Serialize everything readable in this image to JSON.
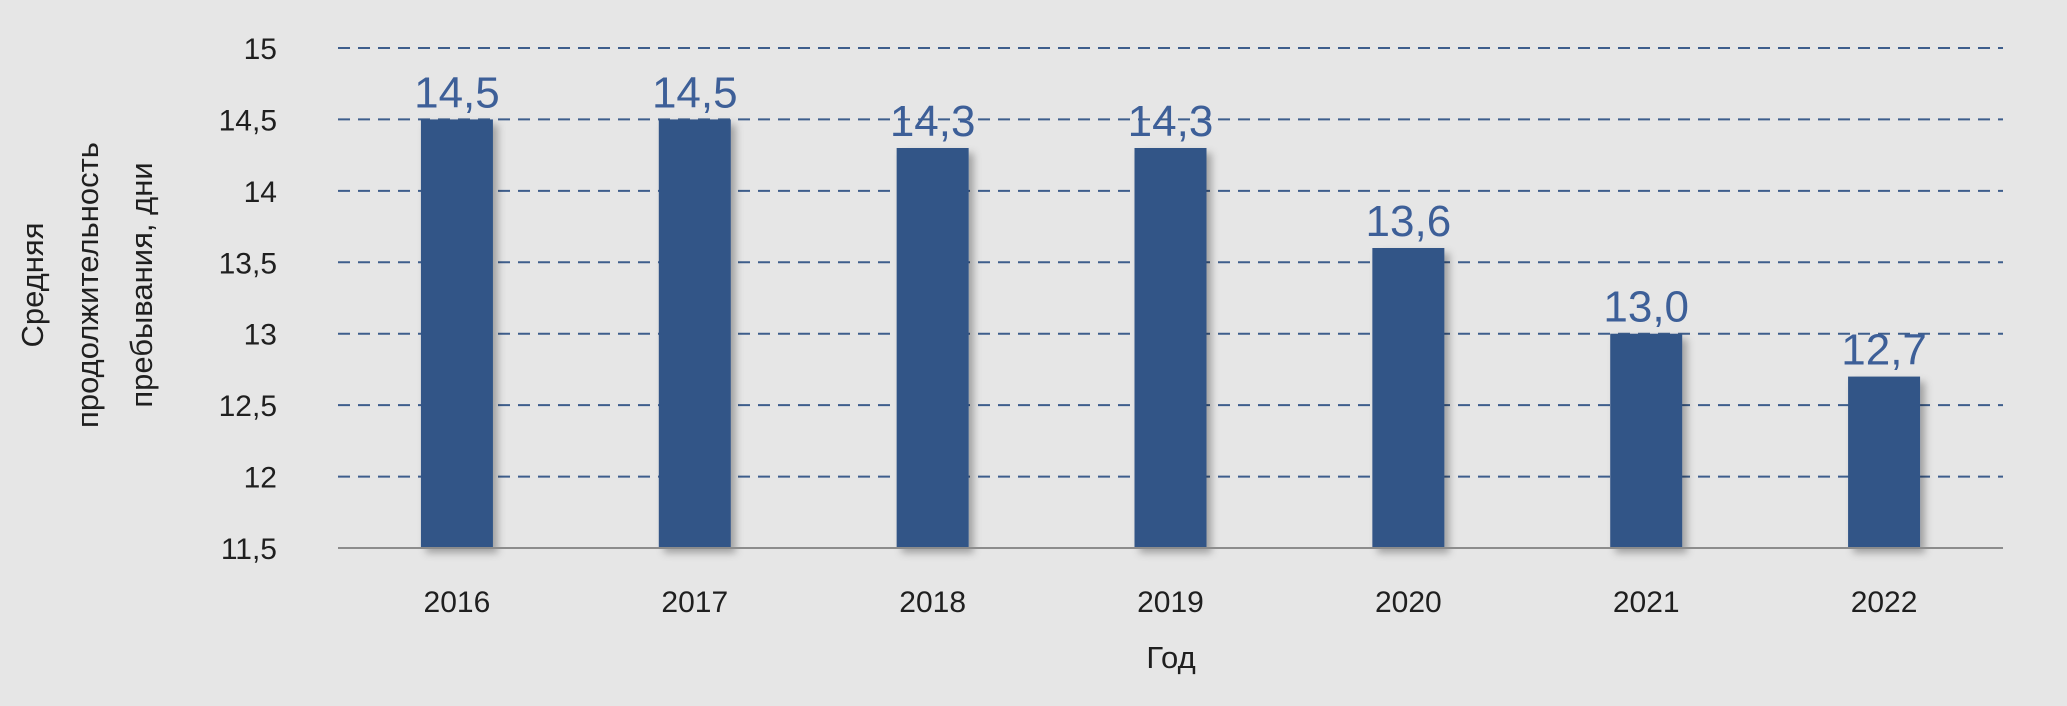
{
  "chart_data": {
    "type": "bar",
    "categories": [
      "2016",
      "2017",
      "2018",
      "2019",
      "2020",
      "2021",
      "2022"
    ],
    "values": [
      14.5,
      14.5,
      14.3,
      14.3,
      13.6,
      13.0,
      12.7
    ],
    "data_labels": [
      "14,5",
      "14,5",
      "14,3",
      "14,3",
      "13,6",
      "13,0",
      "12,7"
    ],
    "xlabel": "Год",
    "ylabel_lines": [
      "Средняя",
      "продолжительность",
      "пребывания,  дни"
    ],
    "ylim": [
      11.5,
      15
    ],
    "yticks": [
      11.5,
      12,
      12.5,
      13,
      13.5,
      14,
      14.5,
      15
    ],
    "ytick_labels": [
      "11,5",
      "12",
      "12,5",
      "13",
      "13,5",
      "14",
      "14,5",
      "15"
    ],
    "grid": true,
    "legend": "none",
    "colors": {
      "bar": "#335587",
      "data_label": "#3d5f98",
      "grid": "#3e5e8c",
      "axis": "#8c8c8c",
      "background": "#e6e6e6"
    }
  }
}
